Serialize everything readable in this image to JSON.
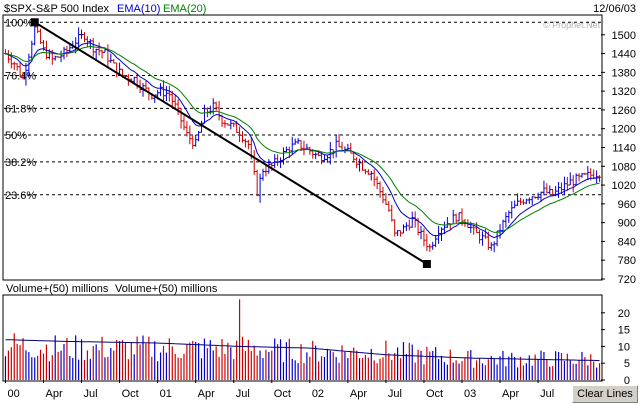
{
  "header": {
    "symbol": "$SPX",
    "name_sep": "-",
    "name": "S&P 500 Index",
    "ema1_label": "EMA(10)",
    "ema2_label": "EMA(20)",
    "date": "12/06/03",
    "watermark": "© Prophet.Net"
  },
  "volume_header": {
    "label1": "Volume+(50) millions",
    "label2": "Volume+(50) millions"
  },
  "clear_lines_label": "Clear Lines",
  "colors": {
    "up_bar": "#0000cc",
    "down_bar": "#cc0000",
    "ema10": "#0000cc",
    "ema20": "#008000",
    "vol_ma": "#000080",
    "trendline": "#000000",
    "grid": "#000000",
    "plot_bg": "#ffffff"
  },
  "chart_data": [
    {
      "type": "ohlc",
      "title": "S&P 500 Index",
      "ylim": [
        720,
        1560
      ],
      "yticks": [
        720,
        780,
        840,
        900,
        960,
        1020,
        1080,
        1140,
        1200,
        1260,
        1320,
        1380,
        1440,
        1500
      ],
      "x_tick_labels": [
        "00",
        "Apr",
        "Jul",
        "Oct",
        "01",
        "Apr",
        "Jul",
        "Oct",
        "02",
        "Apr",
        "Jul",
        "Oct",
        "03",
        "Apr",
        "Jul"
      ],
      "x_tick_weeks": [
        0,
        13,
        26,
        39,
        52,
        65,
        78,
        91,
        104,
        117,
        130,
        143,
        156,
        169,
        182
      ],
      "week_count": 204,
      "fib_levels": [
        {
          "label": "100%",
          "value": 1540
        },
        {
          "label": "76.4%",
          "value": 1370
        },
        {
          "label": "61.8%",
          "value": 1265
        },
        {
          "label": "50%",
          "value": 1180
        },
        {
          "label": "38.2%",
          "value": 1094
        },
        {
          "label": "23.6%",
          "value": 989
        }
      ],
      "trendline": {
        "start": {
          "week": 10,
          "value": 1540
        },
        "end": {
          "week": 144,
          "value": 768
        }
      },
      "price_anchors": [
        [
          0,
          1440
        ],
        [
          3,
          1410
        ],
        [
          6,
          1360
        ],
        [
          10,
          1520
        ],
        [
          13,
          1450
        ],
        [
          16,
          1420
        ],
        [
          20,
          1440
        ],
        [
          24,
          1480
        ],
        [
          27,
          1500
        ],
        [
          30,
          1460
        ],
        [
          34,
          1440
        ],
        [
          37,
          1400
        ],
        [
          40,
          1370
        ],
        [
          44,
          1360
        ],
        [
          47,
          1330
        ],
        [
          50,
          1310
        ],
        [
          53,
          1320
        ],
        [
          56,
          1310
        ],
        [
          59,
          1250
        ],
        [
          62,
          1180
        ],
        [
          65,
          1150
        ],
        [
          68,
          1250
        ],
        [
          71,
          1270
        ],
        [
          74,
          1230
        ],
        [
          77,
          1210
        ],
        [
          80,
          1190
        ],
        [
          83,
          1150
        ],
        [
          86,
          1000
        ],
        [
          88,
          1070
        ],
        [
          91,
          1080
        ],
        [
          94,
          1110
        ],
        [
          97,
          1140
        ],
        [
          100,
          1150
        ],
        [
          104,
          1130
        ],
        [
          107,
          1110
        ],
        [
          110,
          1120
        ],
        [
          113,
          1145
        ],
        [
          116,
          1130
        ],
        [
          119,
          1110
        ],
        [
          122,
          1080
        ],
        [
          125,
          1060
        ],
        [
          128,
          1000
        ],
        [
          131,
          940
        ],
        [
          133,
          860
        ],
        [
          136,
          880
        ],
        [
          139,
          910
        ],
        [
          142,
          860
        ],
        [
          145,
          820
        ],
        [
          148,
          880
        ],
        [
          151,
          900
        ],
        [
          154,
          920
        ],
        [
          157,
          910
        ],
        [
          160,
          870
        ],
        [
          163,
          850
        ],
        [
          166,
          820
        ],
        [
          169,
          880
        ],
        [
          172,
          930
        ],
        [
          175,
          960
        ],
        [
          178,
          980
        ],
        [
          181,
          990
        ],
        [
          184,
          1000
        ],
        [
          187,
          990
        ],
        [
          190,
          1010
        ],
        [
          193,
          1030
        ],
        [
          196,
          1040
        ],
        [
          199,
          1050
        ],
        [
          203,
          1060
        ]
      ]
    },
    {
      "type": "bar",
      "title": "Volume+(50) millions",
      "ylim": [
        0,
        25
      ],
      "yticks": [
        0,
        5,
        10,
        15,
        20
      ],
      "ma_anchors": [
        [
          0,
          12
        ],
        [
          20,
          11.5
        ],
        [
          52,
          11
        ],
        [
          80,
          10
        ],
        [
          104,
          9.5
        ],
        [
          130,
          7.5
        ],
        [
          160,
          6.5
        ],
        [
          190,
          6
        ],
        [
          203,
          5.8
        ]
      ],
      "volume_anchors": [
        [
          0,
          10
        ],
        [
          20,
          9
        ],
        [
          52,
          9
        ],
        [
          79,
          9
        ],
        [
          80,
          24
        ],
        [
          81,
          9
        ],
        [
          104,
          8
        ],
        [
          130,
          8
        ],
        [
          160,
          6
        ],
        [
          203,
          6
        ]
      ]
    }
  ]
}
